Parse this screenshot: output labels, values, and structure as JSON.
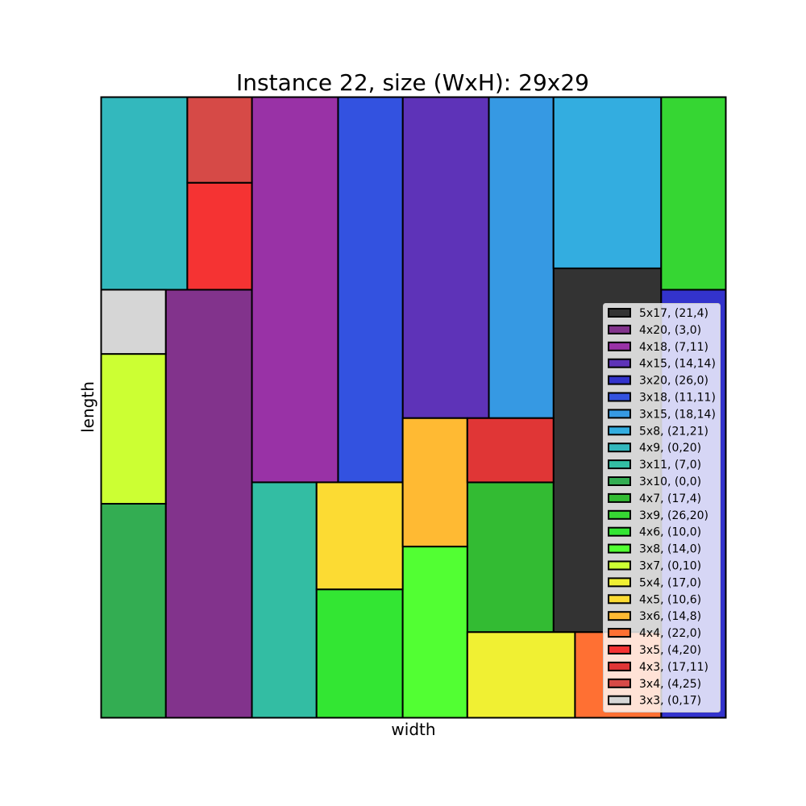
{
  "chart_data": {
    "type": "rectangle-packing",
    "title": "Instance 22, size (WxH): 29x29",
    "xlabel": "width",
    "ylabel": "length",
    "xlim": [
      0,
      29
    ],
    "ylim": [
      0,
      29
    ],
    "grid": false,
    "legend_position": "right",
    "rectangles": [
      {
        "label": "5x17, (21,4)",
        "w": 5,
        "h": 17,
        "x": 21,
        "y": 4,
        "color": "#333333"
      },
      {
        "label": "4x20, (3,0)",
        "w": 4,
        "h": 20,
        "x": 3,
        "y": 0,
        "color": "#82338C"
      },
      {
        "label": "4x18, (7,11)",
        "w": 4,
        "h": 18,
        "x": 7,
        "y": 11,
        "color": "#9932A6"
      },
      {
        "label": "4x15, (14,14)",
        "w": 4,
        "h": 15,
        "x": 14,
        "y": 14,
        "color": "#5E33B8"
      },
      {
        "label": "3x20, (26,0)",
        "w": 3,
        "h": 20,
        "x": 26,
        "y": 0,
        "color": "#3333CC"
      },
      {
        "label": "3x18, (11,11)",
        "w": 3,
        "h": 18,
        "x": 11,
        "y": 11,
        "color": "#3352E0"
      },
      {
        "label": "3x15, (18,14)",
        "w": 3,
        "h": 15,
        "x": 18,
        "y": 14,
        "color": "#3699E3"
      },
      {
        "label": "5x8, (21,21)",
        "w": 5,
        "h": 8,
        "x": 21,
        "y": 21,
        "color": "#33ADE0"
      },
      {
        "label": "4x9, (0,20)",
        "w": 4,
        "h": 9,
        "x": 0,
        "y": 20,
        "color": "#33B8BD"
      },
      {
        "label": "3x11, (7,0)",
        "w": 3,
        "h": 11,
        "x": 7,
        "y": 0,
        "color": "#33BDA3"
      },
      {
        "label": "3x10, (0,0)",
        "w": 3,
        "h": 10,
        "x": 0,
        "y": 0,
        "color": "#33AD52"
      },
      {
        "label": "4x7, (17,4)",
        "w": 4,
        "h": 7,
        "x": 17,
        "y": 4,
        "color": "#33BB33"
      },
      {
        "label": "3x9, (26,20)",
        "w": 3,
        "h": 9,
        "x": 26,
        "y": 20,
        "color": "#36D633"
      },
      {
        "label": "4x6, (10,0)",
        "w": 4,
        "h": 6,
        "x": 10,
        "y": 0,
        "color": "#33E633"
      },
      {
        "label": "3x8, (14,0)",
        "w": 3,
        "h": 8,
        "x": 14,
        "y": 0,
        "color": "#52FF33"
      },
      {
        "label": "3x7, (0,10)",
        "w": 3,
        "h": 7,
        "x": 0,
        "y": 10,
        "color": "#CCFF33"
      },
      {
        "label": "5x4, (17,0)",
        "w": 5,
        "h": 4,
        "x": 17,
        "y": 0,
        "color": "#F0F033"
      },
      {
        "label": "4x5, (10,6)",
        "w": 4,
        "h": 5,
        "x": 10,
        "y": 6,
        "color": "#FCDB33"
      },
      {
        "label": "3x6, (14,8)",
        "w": 3,
        "h": 6,
        "x": 14,
        "y": 8,
        "color": "#FFBA33"
      },
      {
        "label": "4x4, (22,0)",
        "w": 4,
        "h": 4,
        "x": 22,
        "y": 0,
        "color": "#FF7033"
      },
      {
        "label": "3x5, (4,20)",
        "w": 3,
        "h": 5,
        "x": 4,
        "y": 20,
        "color": "#F53333"
      },
      {
        "label": "4x3, (17,11)",
        "w": 4,
        "h": 3,
        "x": 17,
        "y": 11,
        "color": "#E03636"
      },
      {
        "label": "3x4, (4,25)",
        "w": 3,
        "h": 4,
        "x": 4,
        "y": 25,
        "color": "#D64A47"
      },
      {
        "label": "3x3, (0,17)",
        "w": 3,
        "h": 3,
        "x": 0,
        "y": 17,
        "color": "#D6D6D6"
      }
    ]
  }
}
